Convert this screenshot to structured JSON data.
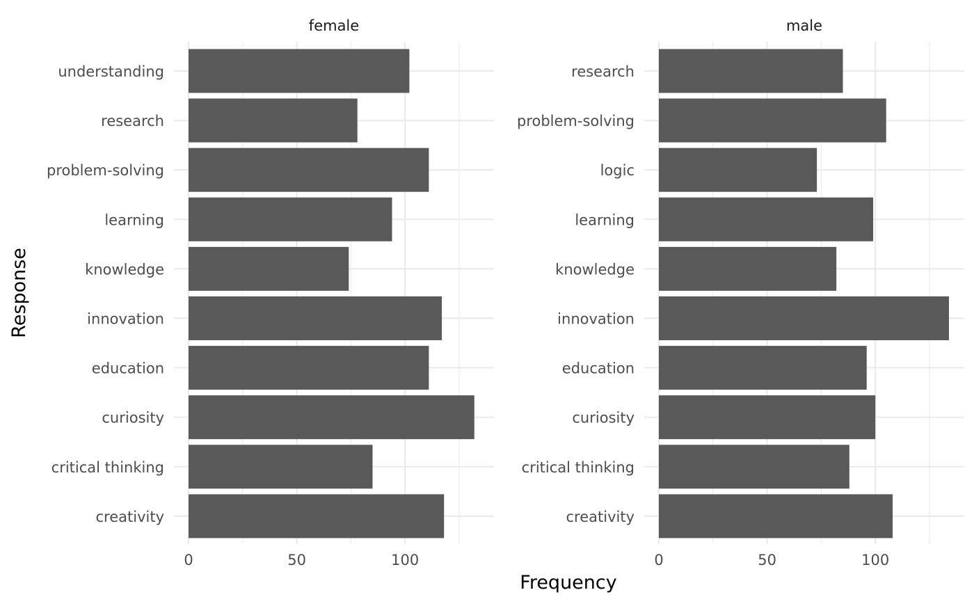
{
  "chart_data": {
    "type": "bar",
    "orientation": "horizontal",
    "xlabel": "Frequency",
    "ylabel": "Response",
    "xlim": [
      0,
      140
    ],
    "xticks": [
      0,
      50,
      100
    ],
    "grid": true,
    "bar_color": "#595959",
    "panels": [
      {
        "label": "female",
        "categories": [
          "understanding",
          "research",
          "problem-solving",
          "learning",
          "knowledge",
          "innovation",
          "education",
          "curiosity",
          "critical thinking",
          "creativity"
        ],
        "values": [
          102,
          78,
          111,
          94,
          74,
          117,
          111,
          132,
          85,
          118
        ]
      },
      {
        "label": "male",
        "categories": [
          "research",
          "problem-solving",
          "logic",
          "learning",
          "knowledge",
          "innovation",
          "education",
          "curiosity",
          "critical thinking",
          "creativity"
        ],
        "values": [
          85,
          105,
          73,
          99,
          82,
          134,
          96,
          100,
          88,
          108
        ]
      }
    ]
  }
}
